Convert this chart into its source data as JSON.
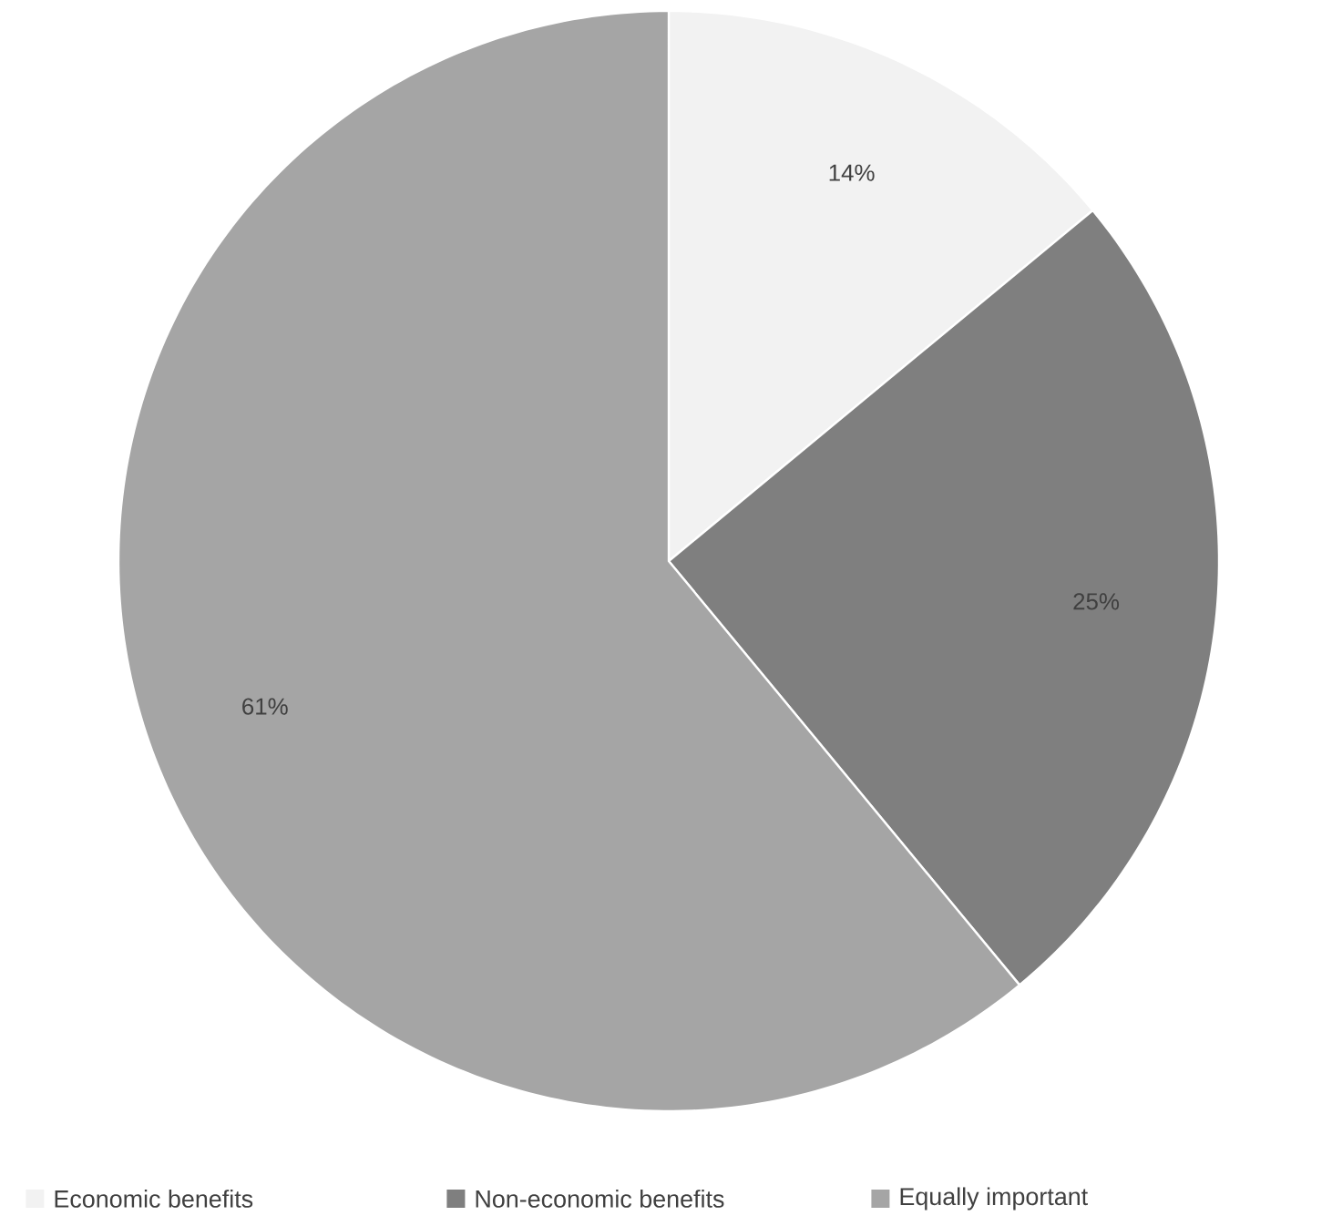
{
  "chart_data": {
    "type": "pie",
    "categories": [
      "Economic benefits",
      "Non-economic benefits",
      "Equally important"
    ],
    "values": [
      14,
      25,
      61
    ],
    "colors": [
      "#f2f2f2",
      "#7f7f7f",
      "#a5a5a5"
    ],
    "value_labels": [
      "14%",
      "25%",
      "61%"
    ],
    "legend": "bottom"
  }
}
